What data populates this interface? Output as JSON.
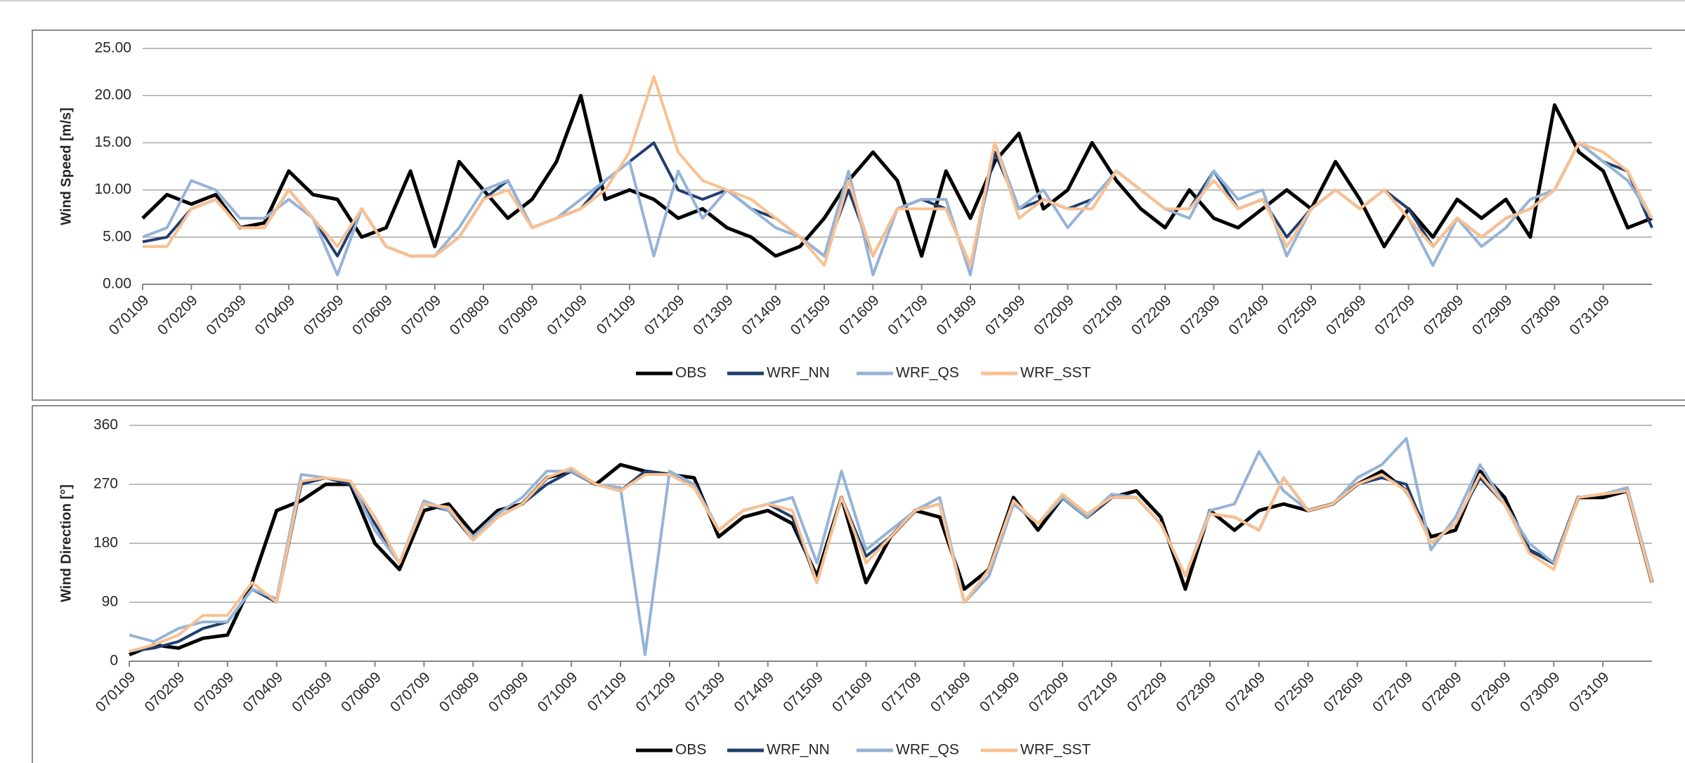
{
  "chart_data": [
    {
      "type": "line",
      "y_label": "Wind Speed [m/s]",
      "x": [
        0,
        0.5,
        1,
        1.5,
        2,
        2.5,
        3,
        3.5,
        4,
        4.5,
        5,
        5.5,
        6,
        6.5,
        7,
        7.5,
        8,
        8.5,
        9,
        9.5,
        10,
        10.5,
        11,
        11.5,
        12,
        12.5,
        13,
        13.5,
        14,
        14.5,
        15,
        15.5,
        16,
        16.5,
        17,
        17.5,
        18,
        18.5,
        19,
        19.5,
        20,
        20.5,
        21,
        21.5,
        22,
        22.5,
        23,
        23.5,
        24,
        24.5,
        25,
        25.5,
        26,
        26.5,
        27,
        27.5,
        28,
        28.5,
        29,
        29.5,
        30,
        30.5,
        31
      ],
      "xlim": [
        0,
        31
      ],
      "xticks": [
        {
          "value": 0,
          "label": "070109"
        },
        {
          "value": 1,
          "label": "070209"
        },
        {
          "value": 2,
          "label": "070309"
        },
        {
          "value": 3,
          "label": "070409"
        },
        {
          "value": 4,
          "label": "070509"
        },
        {
          "value": 5,
          "label": "070609"
        },
        {
          "value": 6,
          "label": "070709"
        },
        {
          "value": 7,
          "label": "070809"
        },
        {
          "value": 8,
          "label": "070909"
        },
        {
          "value": 9,
          "label": "071009"
        },
        {
          "value": 10,
          "label": "071109"
        },
        {
          "value": 11,
          "label": "071209"
        },
        {
          "value": 12,
          "label": "071309"
        },
        {
          "value": 13,
          "label": "071409"
        },
        {
          "value": 14,
          "label": "071509"
        },
        {
          "value": 15,
          "label": "071609"
        },
        {
          "value": 16,
          "label": "071709"
        },
        {
          "value": 17,
          "label": "071809"
        },
        {
          "value": 18,
          "label": "071909"
        },
        {
          "value": 19,
          "label": "072009"
        },
        {
          "value": 20,
          "label": "072109"
        },
        {
          "value": 21,
          "label": "072209"
        },
        {
          "value": 22,
          "label": "072309"
        },
        {
          "value": 23,
          "label": "072409"
        },
        {
          "value": 24,
          "label": "072509"
        },
        {
          "value": 25,
          "label": "072609"
        },
        {
          "value": 26,
          "label": "072709"
        },
        {
          "value": 27,
          "label": "072809"
        },
        {
          "value": 28,
          "label": "072909"
        },
        {
          "value": 29,
          "label": "073009"
        },
        {
          "value": 30,
          "label": "073109"
        }
      ],
      "ylim": [
        0,
        25
      ],
      "yticks": [
        {
          "value": 0,
          "label": "0.00"
        },
        {
          "value": 5,
          "label": "5.00"
        },
        {
          "value": 10,
          "label": "10.00"
        },
        {
          "value": 15,
          "label": "15.00"
        },
        {
          "value": 20,
          "label": "20.00"
        },
        {
          "value": 25,
          "label": "25.00"
        }
      ],
      "grid": true,
      "series": [
        {
          "name": "OBS",
          "color": "#000000",
          "values": [
            7,
            9.5,
            8.5,
            9.5,
            6,
            6.5,
            12,
            9.5,
            9,
            5,
            6,
            12,
            4,
            13,
            10,
            7,
            9,
            13,
            20,
            9,
            10,
            9,
            7,
            8,
            6,
            5,
            3,
            4,
            7,
            11,
            14,
            11,
            3,
            12,
            7,
            13,
            16,
            8,
            10,
            15,
            11,
            8,
            6,
            10,
            7,
            6,
            8,
            10,
            8,
            13,
            9,
            4,
            8,
            5,
            9,
            7,
            9,
            5,
            19,
            14,
            12,
            6,
            7
          ]
        },
        {
          "name": "WRF_NN",
          "color": "#1f3f6e",
          "values": [
            4.5,
            5,
            8,
            9,
            6,
            6,
            10,
            7,
            3,
            8,
            4,
            3,
            3,
            5,
            9,
            11,
            6,
            7,
            8,
            11,
            13,
            15,
            10,
            9,
            10,
            8,
            7,
            5,
            3,
            10,
            3,
            8,
            9,
            8,
            2,
            14,
            8,
            9,
            8,
            9,
            12,
            10,
            8,
            8,
            12,
            8,
            9,
            5,
            8,
            10,
            8,
            10,
            8,
            4,
            7,
            5,
            7,
            8,
            10,
            15,
            13,
            12,
            6
          ]
        },
        {
          "name": "WRF_QS",
          "color": "#95b3d7",
          "values": [
            5,
            6,
            11,
            10,
            7,
            7,
            9,
            7,
            1,
            8,
            4,
            3,
            3,
            6,
            10,
            11,
            6,
            7,
            9,
            11,
            13,
            3,
            12,
            7,
            10,
            8,
            6,
            5,
            3,
            12,
            1,
            8,
            9,
            9,
            1,
            15,
            8,
            10,
            6,
            9,
            12,
            10,
            8,
            7,
            12,
            9,
            10,
            3,
            8,
            10,
            8,
            10,
            7,
            2,
            7,
            4,
            6,
            9,
            10,
            15,
            13,
            11,
            7
          ]
        },
        {
          "name": "WRF_SST",
          "color": "#fac090",
          "values": [
            4,
            4,
            8,
            9,
            6,
            6,
            10,
            7,
            4,
            8,
            4,
            3,
            3,
            5,
            9,
            10,
            6,
            7,
            8,
            10,
            14,
            22,
            14,
            11,
            10,
            9,
            7,
            5,
            2,
            11,
            3,
            8,
            8,
            8,
            2,
            15,
            7,
            9,
            8,
            8,
            12,
            10,
            8,
            8,
            11,
            8,
            9,
            4,
            8,
            10,
            8,
            10,
            7,
            4,
            7,
            5,
            7,
            8,
            10,
            15,
            14,
            12,
            7
          ]
        }
      ]
    },
    {
      "type": "line",
      "y_label": "Wind Direction [°]",
      "x": [
        0,
        0.5,
        1,
        1.5,
        2,
        2.5,
        3,
        3.5,
        4,
        4.5,
        5,
        5.5,
        6,
        6.5,
        7,
        7.5,
        8,
        8.5,
        9,
        9.5,
        10,
        10.5,
        11,
        11.5,
        12,
        12.5,
        13,
        13.5,
        14,
        14.5,
        15,
        15.5,
        16,
        16.5,
        17,
        17.5,
        18,
        18.5,
        19,
        19.5,
        20,
        20.5,
        21,
        21.5,
        22,
        22.5,
        23,
        23.5,
        24,
        24.5,
        25,
        25.5,
        26,
        26.5,
        27,
        27.5,
        28,
        28.5,
        29,
        29.5,
        30,
        30.5,
        31
      ],
      "xlim": [
        0,
        31
      ],
      "xticks": [
        {
          "value": 0,
          "label": "070109"
        },
        {
          "value": 1,
          "label": "070209"
        },
        {
          "value": 2,
          "label": "070309"
        },
        {
          "value": 3,
          "label": "070409"
        },
        {
          "value": 4,
          "label": "070509"
        },
        {
          "value": 5,
          "label": "070609"
        },
        {
          "value": 6,
          "label": "070709"
        },
        {
          "value": 7,
          "label": "070809"
        },
        {
          "value": 8,
          "label": "070909"
        },
        {
          "value": 9,
          "label": "071009"
        },
        {
          "value": 10,
          "label": "071109"
        },
        {
          "value": 11,
          "label": "071209"
        },
        {
          "value": 12,
          "label": "071309"
        },
        {
          "value": 13,
          "label": "071409"
        },
        {
          "value": 14,
          "label": "071509"
        },
        {
          "value": 15,
          "label": "071609"
        },
        {
          "value": 16,
          "label": "071709"
        },
        {
          "value": 17,
          "label": "071809"
        },
        {
          "value": 18,
          "label": "071909"
        },
        {
          "value": 19,
          "label": "072009"
        },
        {
          "value": 20,
          "label": "072109"
        },
        {
          "value": 21,
          "label": "072209"
        },
        {
          "value": 22,
          "label": "072309"
        },
        {
          "value": 23,
          "label": "072409"
        },
        {
          "value": 24,
          "label": "072509"
        },
        {
          "value": 25,
          "label": "072609"
        },
        {
          "value": 26,
          "label": "072709"
        },
        {
          "value": 27,
          "label": "072809"
        },
        {
          "value": 28,
          "label": "072909"
        },
        {
          "value": 29,
          "label": "073009"
        },
        {
          "value": 30,
          "label": "073109"
        }
      ],
      "ylim": [
        0,
        360
      ],
      "yticks": [
        0,
        90,
        180,
        270,
        360
      ],
      "grid": true,
      "series": [
        {
          "name": "OBS",
          "color": "#000000",
          "values": [
            10,
            25,
            20,
            35,
            40,
            120,
            230,
            245,
            270,
            270,
            180,
            140,
            230,
            240,
            195,
            230,
            240,
            280,
            290,
            270,
            300,
            290,
            285,
            280,
            190,
            220,
            230,
            210,
            130,
            250,
            120,
            190,
            230,
            220,
            110,
            140,
            250,
            200,
            250,
            220,
            250,
            260,
            220,
            110,
            230,
            200,
            230,
            240,
            230,
            240,
            270,
            290,
            260,
            190,
            200,
            290,
            250,
            170,
            150,
            250,
            250,
            260,
            120
          ]
        },
        {
          "name": "WRF_NN",
          "color": "#1f3f6e",
          "values": [
            15,
            20,
            30,
            50,
            60,
            110,
            90,
            270,
            280,
            270,
            210,
            150,
            240,
            230,
            185,
            220,
            240,
            270,
            290,
            270,
            260,
            290,
            285,
            270,
            200,
            230,
            240,
            220,
            120,
            250,
            160,
            190,
            230,
            240,
            90,
            130,
            240,
            210,
            250,
            220,
            250,
            250,
            210,
            130,
            225,
            220,
            200,
            280,
            230,
            240,
            270,
            280,
            270,
            180,
            210,
            280,
            240,
            170,
            150,
            250,
            255,
            260,
            120
          ]
        },
        {
          "name": "WRF_QS",
          "color": "#95b3d7",
          "values": [
            40,
            30,
            50,
            60,
            60,
            110,
            95,
            285,
            280,
            275,
            200,
            150,
            245,
            230,
            190,
            225,
            250,
            290,
            290,
            270,
            265,
            10,
            290,
            270,
            200,
            230,
            240,
            250,
            150,
            290,
            170,
            200,
            230,
            250,
            90,
            130,
            240,
            210,
            250,
            220,
            255,
            250,
            210,
            130,
            230,
            240,
            320,
            260,
            230,
            240,
            280,
            300,
            340,
            170,
            220,
            300,
            240,
            180,
            150,
            250,
            255,
            265,
            125
          ]
        },
        {
          "name": "WRF_SST",
          "color": "#fac090",
          "values": [
            15,
            25,
            40,
            70,
            70,
            120,
            90,
            275,
            280,
            275,
            220,
            150,
            240,
            235,
            185,
            220,
            240,
            280,
            295,
            270,
            260,
            285,
            285,
            265,
            200,
            230,
            240,
            230,
            120,
            250,
            150,
            190,
            230,
            240,
            90,
            140,
            245,
            210,
            255,
            225,
            250,
            250,
            210,
            130,
            225,
            220,
            200,
            280,
            230,
            240,
            270,
            285,
            260,
            180,
            210,
            285,
            240,
            165,
            140,
            250,
            255,
            260,
            120
          ]
        }
      ]
    }
  ]
}
